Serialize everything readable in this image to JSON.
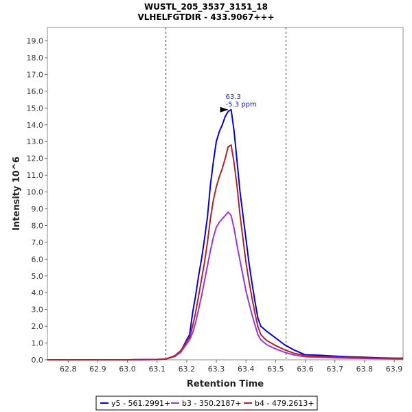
{
  "chart_data": {
    "type": "line",
    "title": "WUSTL_205_3537_3151_18",
    "subtitle": "VLHELFGTDIR - 433.9067+++",
    "xlabel": "Retention Time",
    "ylabel": "Intensity 10^6",
    "xlim": [
      62.73,
      63.93
    ],
    "ylim": [
      0,
      19.8
    ],
    "x_ticks": [
      62.8,
      62.9,
      63.0,
      63.1,
      63.2,
      63.3,
      63.4,
      63.5,
      63.6,
      63.7,
      63.8,
      63.9
    ],
    "x_tick_labels": [
      "62.8",
      "62.9",
      "63.0",
      "63.1",
      "63.2",
      "63.3",
      "63.4",
      "63.5",
      "63.6",
      "63.7",
      "63.8",
      "63.9"
    ],
    "y_ticks": [
      0,
      1,
      2,
      3,
      4,
      5,
      6,
      7,
      8,
      9,
      10,
      11,
      12,
      13,
      14,
      15,
      16,
      17,
      18,
      19
    ],
    "y_tick_labels": [
      "0.0",
      "1.0",
      "2.0",
      "3.0",
      "4.0",
      "5.0",
      "6.0",
      "7.0",
      "8.0",
      "9.0",
      "10.0",
      "11.0",
      "12.0",
      "13.0",
      "14.0",
      "15.0",
      "16.0",
      "17.0",
      "18.0",
      "19.0"
    ],
    "boundaries": [
      63.13,
      63.535
    ],
    "annotation": {
      "x": 63.35,
      "y": 14.9,
      "line1": "63.3",
      "line2": "-5.3 ppm"
    },
    "series": [
      {
        "name": "y5 - 561.2991+",
        "color": "#0000e6",
        "points": [
          [
            62.73,
            0.0
          ],
          [
            62.9,
            0.0
          ],
          [
            63.0,
            0.0
          ],
          [
            63.1,
            0.02
          ],
          [
            63.13,
            0.05
          ],
          [
            63.16,
            0.2
          ],
          [
            63.18,
            0.5
          ],
          [
            63.19,
            0.85
          ],
          [
            63.2,
            1.2
          ],
          [
            63.21,
            1.5
          ],
          [
            63.22,
            2.8
          ],
          [
            63.23,
            3.8
          ],
          [
            63.24,
            5.0
          ],
          [
            63.25,
            6.0
          ],
          [
            63.26,
            7.2
          ],
          [
            63.27,
            8.5
          ],
          [
            63.28,
            10.4
          ],
          [
            63.29,
            11.8
          ],
          [
            63.3,
            13.0
          ],
          [
            63.31,
            13.6
          ],
          [
            63.32,
            14.0
          ],
          [
            63.33,
            14.5
          ],
          [
            63.34,
            14.8
          ],
          [
            63.35,
            14.9
          ],
          [
            63.36,
            13.6
          ],
          [
            63.37,
            11.8
          ],
          [
            63.38,
            10.0
          ],
          [
            63.39,
            8.6
          ],
          [
            63.4,
            7.2
          ],
          [
            63.41,
            5.8
          ],
          [
            63.42,
            4.6
          ],
          [
            63.43,
            3.5
          ],
          [
            63.44,
            2.5
          ],
          [
            63.45,
            2.0
          ],
          [
            63.47,
            1.7
          ],
          [
            63.5,
            1.3
          ],
          [
            63.53,
            0.9
          ],
          [
            63.56,
            0.6
          ],
          [
            63.6,
            0.3
          ],
          [
            63.65,
            0.27
          ],
          [
            63.7,
            0.22
          ],
          [
            63.75,
            0.18
          ],
          [
            63.8,
            0.15
          ],
          [
            63.85,
            0.12
          ],
          [
            63.9,
            0.1
          ],
          [
            63.93,
            0.1
          ]
        ]
      },
      {
        "name": "b3 - 350.2187+",
        "color": "#9933e6",
        "points": [
          [
            62.73,
            0.0
          ],
          [
            62.9,
            0.0
          ],
          [
            63.0,
            0.0
          ],
          [
            63.1,
            0.02
          ],
          [
            63.13,
            0.05
          ],
          [
            63.16,
            0.2
          ],
          [
            63.18,
            0.45
          ],
          [
            63.19,
            0.7
          ],
          [
            63.2,
            0.95
          ],
          [
            63.21,
            1.2
          ],
          [
            63.22,
            1.6
          ],
          [
            63.23,
            2.2
          ],
          [
            63.24,
            3.0
          ],
          [
            63.25,
            3.8
          ],
          [
            63.26,
            4.7
          ],
          [
            63.27,
            5.6
          ],
          [
            63.28,
            6.5
          ],
          [
            63.29,
            7.3
          ],
          [
            63.3,
            7.9
          ],
          [
            63.31,
            8.2
          ],
          [
            63.32,
            8.4
          ],
          [
            63.33,
            8.6
          ],
          [
            63.34,
            8.8
          ],
          [
            63.35,
            8.6
          ],
          [
            63.36,
            7.8
          ],
          [
            63.37,
            6.8
          ],
          [
            63.38,
            5.9
          ],
          [
            63.39,
            5.0
          ],
          [
            63.4,
            4.1
          ],
          [
            63.41,
            3.4
          ],
          [
            63.42,
            2.7
          ],
          [
            63.43,
            2.1
          ],
          [
            63.44,
            1.5
          ],
          [
            63.45,
            1.2
          ],
          [
            63.47,
            0.9
          ],
          [
            63.5,
            0.65
          ],
          [
            63.53,
            0.45
          ],
          [
            63.56,
            0.3
          ],
          [
            63.6,
            0.18
          ],
          [
            63.65,
            0.15
          ],
          [
            63.7,
            0.12
          ],
          [
            63.75,
            0.1
          ],
          [
            63.8,
            0.08
          ],
          [
            63.85,
            0.07
          ],
          [
            63.9,
            0.06
          ],
          [
            63.93,
            0.05
          ]
        ]
      },
      {
        "name": "b4 - 479.2613+",
        "color": "#b22222",
        "points": [
          [
            62.73,
            0.0
          ],
          [
            62.9,
            0.0
          ],
          [
            63.0,
            0.0
          ],
          [
            63.1,
            0.02
          ],
          [
            63.13,
            0.05
          ],
          [
            63.16,
            0.25
          ],
          [
            63.18,
            0.55
          ],
          [
            63.19,
            0.8
          ],
          [
            63.2,
            1.1
          ],
          [
            63.21,
            1.35
          ],
          [
            63.22,
            2.0
          ],
          [
            63.23,
            2.8
          ],
          [
            63.24,
            3.8
          ],
          [
            63.25,
            4.8
          ],
          [
            63.26,
            5.8
          ],
          [
            63.27,
            7.0
          ],
          [
            63.28,
            8.4
          ],
          [
            63.29,
            9.5
          ],
          [
            63.3,
            10.3
          ],
          [
            63.31,
            10.9
          ],
          [
            63.32,
            11.4
          ],
          [
            63.33,
            12.0
          ],
          [
            63.34,
            12.7
          ],
          [
            63.35,
            12.8
          ],
          [
            63.36,
            11.7
          ],
          [
            63.37,
            10.3
          ],
          [
            63.38,
            8.6
          ],
          [
            63.39,
            7.2
          ],
          [
            63.4,
            5.8
          ],
          [
            63.41,
            4.7
          ],
          [
            63.42,
            3.7
          ],
          [
            63.43,
            2.8
          ],
          [
            63.44,
            2.0
          ],
          [
            63.45,
            1.5
          ],
          [
            63.47,
            1.15
          ],
          [
            63.5,
            0.85
          ],
          [
            63.53,
            0.6
          ],
          [
            63.56,
            0.4
          ],
          [
            63.6,
            0.25
          ],
          [
            63.65,
            0.2
          ],
          [
            63.7,
            0.17
          ],
          [
            63.75,
            0.14
          ],
          [
            63.8,
            0.12
          ],
          [
            63.85,
            0.1
          ],
          [
            63.9,
            0.08
          ],
          [
            63.93,
            0.08
          ]
        ]
      }
    ],
    "legend": {
      "position": "bottom",
      "entries": [
        "y5 - 561.2991+",
        "b3 - 350.2187+",
        "b4 - 479.2613+"
      ]
    }
  }
}
